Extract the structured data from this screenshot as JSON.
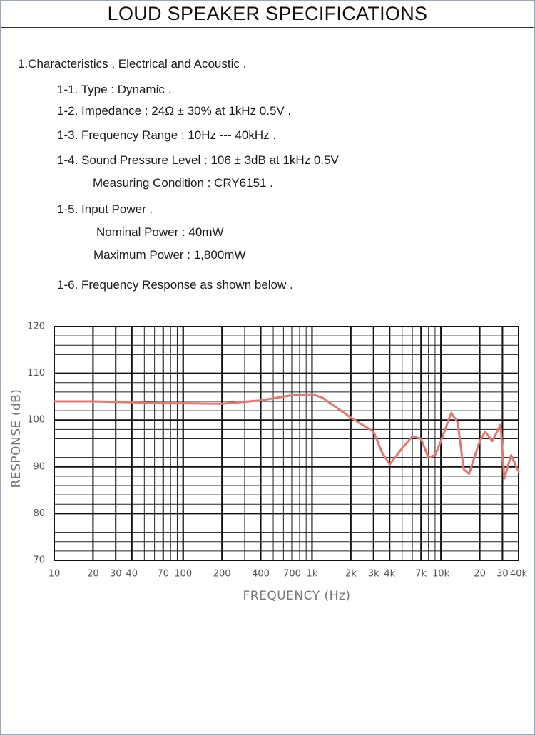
{
  "header": {
    "title": "LOUD SPEAKER SPECIFICATIONS"
  },
  "spec": {
    "heading": "1.Characteristics , Electrical and Acoustic .",
    "items": [
      {
        "label": "1-1. Type : Dynamic ."
      },
      {
        "label": "1-2. Impedance : 24Ω ± 30% at 1kHz 0.5V ."
      },
      {
        "label": "1-3. Frequency Range : 10Hz --- 40kHz ."
      },
      {
        "label": "1-4. Sound Pressure Level : 106 ± 3dB at 1kHz 0.5V",
        "sub": [
          "Measuring Condition : CRY6151 ."
        ]
      },
      {
        "label": "1-5. Input Power .",
        "sub": [
          "Nominal Power : 40mW",
          "Maximum Power : 1,800mW"
        ]
      },
      {
        "label": "1-6. Frequency Response as shown below ."
      }
    ]
  },
  "chart_data": {
    "type": "line",
    "x_label": "FREQUENCY (Hz)",
    "y_label": "RESPONSE (dB)",
    "log_x": true,
    "grid": true,
    "minor_grid": true,
    "xlim": [
      10,
      40000
    ],
    "ylim": [
      70,
      120
    ],
    "xticks": [
      10,
      20,
      30,
      40,
      70,
      100,
      200,
      400,
      700,
      {
        "value": 1000,
        "label": "1k"
      },
      {
        "value": 2000,
        "label": "2k"
      },
      {
        "value": 3000,
        "label": "3k"
      },
      {
        "value": 4000,
        "label": "4k"
      },
      {
        "value": 7000,
        "label": "7k"
      },
      {
        "value": 10000,
        "label": "10k"
      },
      {
        "value": 20000,
        "label": "20"
      },
      {
        "value": 30000,
        "label": "30"
      },
      {
        "value": 40000,
        "label": "40k"
      }
    ],
    "yticks": [
      70,
      80,
      90,
      100,
      110,
      120
    ],
    "color": "#e8766f",
    "x": [
      10,
      20,
      40,
      70,
      100,
      200,
      400,
      700,
      1000,
      1200,
      2000,
      3000,
      3500,
      4000,
      5000,
      6000,
      7000,
      8000,
      9000,
      10000,
      12000,
      13500,
      15000,
      16500,
      20000,
      22000,
      25000,
      29000,
      31000,
      35000,
      40000
    ],
    "values": [
      104,
      104,
      103.8,
      103.6,
      103.6,
      103.5,
      104.2,
      105.3,
      105.5,
      104.8,
      100.5,
      97.5,
      93,
      90.5,
      94,
      96.5,
      96,
      92,
      92.5,
      95.5,
      101.5,
      99.5,
      89.5,
      88.5,
      95.5,
      97.5,
      95.5,
      99,
      87.5,
      92.5,
      89
    ]
  }
}
